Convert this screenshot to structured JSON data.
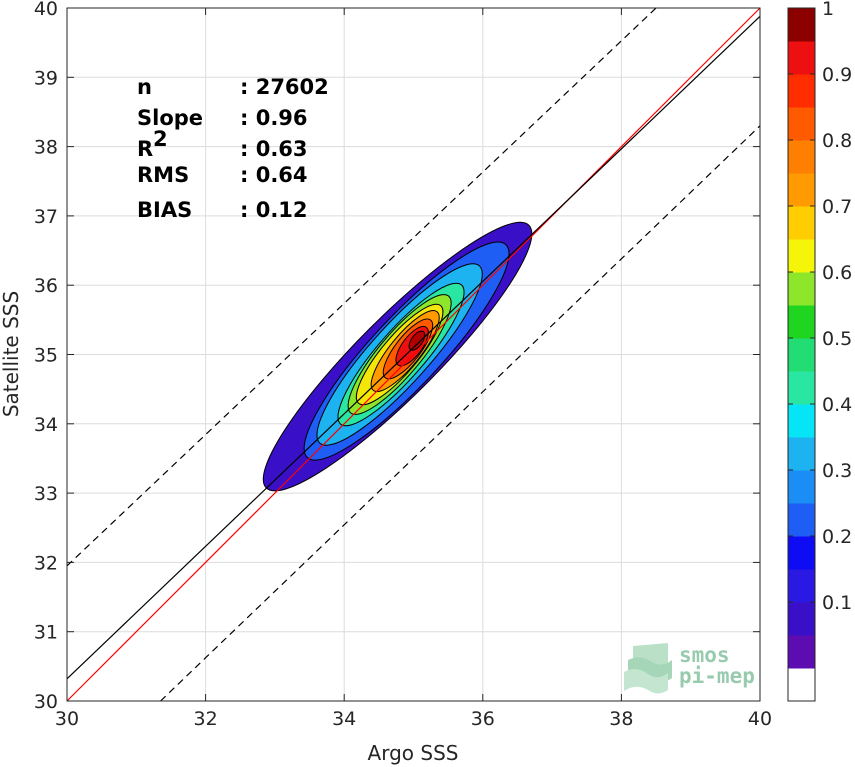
{
  "chart_data": {
    "type": "scatter",
    "subtype": "density-contour",
    "xlabel": "Argo SSS",
    "ylabel": "Satellite SSS",
    "xlim": [
      30,
      40
    ],
    "ylim": [
      30,
      40
    ],
    "x_ticks": [
      "30",
      "32",
      "34",
      "36",
      "38",
      "40"
    ],
    "y_ticks": [
      "30",
      "31",
      "32",
      "33",
      "34",
      "35",
      "36",
      "37",
      "38",
      "39",
      "40"
    ],
    "grid": true,
    "statistics": [
      {
        "label": "n",
        "value": ": 27602"
      },
      {
        "label": "Slope",
        "value": ": 0.96"
      },
      {
        "label": "R",
        "superscript": "2",
        "value": ": 0.63"
      },
      {
        "label": "RMS",
        "value": ": 0.64"
      },
      {
        "label": "BIAS",
        "value": ": 0.12"
      }
    ],
    "lines": [
      {
        "role": "one-to-one",
        "color": "#ff0000",
        "points": [
          [
            30,
            30
          ],
          [
            40,
            40
          ]
        ]
      },
      {
        "role": "regression",
        "color": "#000000",
        "points": [
          [
            30,
            30.32
          ],
          [
            40,
            39.88
          ]
        ]
      },
      {
        "role": "upper-bound",
        "color": "#000000",
        "dash": true,
        "points": [
          [
            30,
            31.95
          ],
          [
            38.5,
            40
          ]
        ]
      },
      {
        "role": "lower-bound",
        "color": "#000000",
        "dash": true,
        "points": [
          [
            31.35,
            30
          ],
          [
            40,
            38.3
          ]
        ]
      }
    ],
    "contour_levels": [
      0.05,
      0.1,
      0.15,
      0.2,
      0.25,
      0.3,
      0.35,
      0.4,
      0.45,
      0.5,
      0.55,
      0.6,
      0.65,
      0.7,
      0.75,
      0.8,
      0.85,
      0.9,
      0.95,
      1.0
    ],
    "density_contours": [
      {
        "level": 0.05,
        "color": "#3910c8",
        "center": [
          34.77,
          34.97
        ],
        "major": 2.68,
        "minor": 0.57,
        "angle_deg": 45
      },
      {
        "level": 0.2,
        "color": "#1f5ef5",
        "center": [
          34.9,
          35.05
        ],
        "major": 2.1,
        "minor": 0.5,
        "angle_deg": 47
      },
      {
        "level": 0.3,
        "color": "#1cb3f0",
        "center": [
          34.8,
          35.0
        ],
        "major": 1.72,
        "minor": 0.42,
        "angle_deg": 48
      },
      {
        "level": 0.4,
        "color": "#2ae6a3",
        "center": [
          34.82,
          35.0
        ],
        "major": 1.33,
        "minor": 0.34,
        "angle_deg": 49
      },
      {
        "level": 0.5,
        "color": "#8ee62a",
        "center": [
          34.8,
          35.0
        ],
        "major": 1.1,
        "minor": 0.3,
        "angle_deg": 50
      },
      {
        "level": 0.6,
        "color": "#f5e60a",
        "center": [
          34.8,
          35.0
        ],
        "major": 0.92,
        "minor": 0.26,
        "angle_deg": 50
      },
      {
        "level": 0.7,
        "color": "#ff9a00",
        "center": [
          34.88,
          35.05
        ],
        "major": 0.73,
        "minor": 0.22,
        "angle_deg": 51
      },
      {
        "level": 0.8,
        "color": "#ff5a00",
        "center": [
          34.92,
          35.08
        ],
        "major": 0.53,
        "minor": 0.18,
        "angle_deg": 52
      },
      {
        "level": 0.9,
        "color": "#ee1010",
        "center": [
          34.98,
          35.12
        ],
        "major": 0.34,
        "minor": 0.14,
        "angle_deg": 53
      },
      {
        "level": 0.95,
        "color": "#b20000",
        "center": [
          35.05,
          35.2
        ],
        "major": 0.16,
        "minor": 0.08,
        "angle_deg": 54
      }
    ],
    "colorbar": {
      "ticks": [
        "0.1",
        "0.2",
        "0.3",
        "0.4",
        "0.5",
        "0.6",
        "0.7",
        "0.8",
        "0.9",
        "1"
      ],
      "tick_values": [
        0.1,
        0.2,
        0.3,
        0.4,
        0.5,
        0.6,
        0.7,
        0.8,
        0.9,
        1.0
      ],
      "range": [
        0,
        1
      ],
      "bands": [
        "#ffffff",
        "#5c0cb0",
        "#3910c8",
        "#2a19e2",
        "#0d0cf5",
        "#1f5ef5",
        "#1a8ef5",
        "#1cb3f0",
        "#06e5f5",
        "#2ae6a3",
        "#22dd73",
        "#1fd51f",
        "#8ee62a",
        "#f5f50a",
        "#ffcd00",
        "#ff9a00",
        "#ff7f00",
        "#ff5a00",
        "#ff2d00",
        "#ee1010",
        "#8c0000"
      ]
    },
    "watermark": {
      "lines": [
        "smos",
        "pi-mep"
      ]
    }
  }
}
